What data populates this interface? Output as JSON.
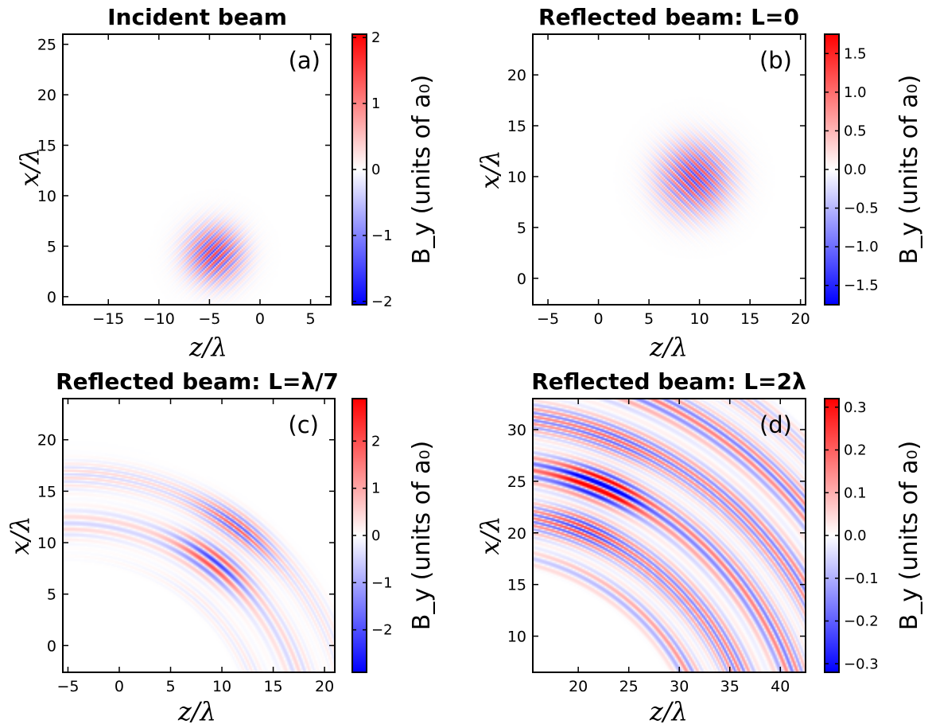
{
  "chart_data": [
    {
      "type": "heatmap",
      "title": "Incident beam",
      "panel_label": "(a)",
      "xlabel": "z/λ",
      "ylabel": "x/λ",
      "colorbar_label": "B_y (units of a₀)",
      "colormap": "bwr",
      "xlim": [
        -19.5,
        7
      ],
      "ylim": [
        -0.8,
        26
      ],
      "xticks": [
        -15,
        -10,
        -5,
        0,
        5
      ],
      "yticks": [
        0,
        5,
        10,
        15,
        20,
        25
      ],
      "clim": [
        -2.05,
        2.05
      ],
      "cbar_ticks": [
        -2,
        -1,
        0,
        1,
        2
      ],
      "cbar_tick_labels": [
        "−2",
        "−1",
        "0",
        "1",
        "2"
      ],
      "field": {
        "kind": "packet",
        "center": [
          -4.5,
          4.2
        ],
        "radius": 2.6,
        "amplitude": 1.9,
        "fringe_spacing": 0.55,
        "fringe_angle_deg": -45
      }
    },
    {
      "type": "heatmap",
      "title": "Reflected beam: L=0",
      "panel_label": "(b)",
      "xlabel": "z/λ",
      "ylabel": "x/λ",
      "colorbar_label": "B_y (units of a₀)",
      "colormap": "bwr",
      "xlim": [
        -6.5,
        20.5
      ],
      "ylim": [
        -2.6,
        24
      ],
      "xticks": [
        -5,
        0,
        5,
        10,
        15,
        20
      ],
      "yticks": [
        0,
        5,
        10,
        15,
        20
      ],
      "clim": [
        -1.75,
        1.75
      ],
      "cbar_ticks": [
        -1.5,
        -1.0,
        -0.5,
        0.0,
        0.5,
        1.0,
        1.5
      ],
      "cbar_tick_labels": [
        "−1.5",
        "−1.0",
        "−0.5",
        "0.0",
        "0.5",
        "1.0",
        "1.5"
      ],
      "field": {
        "kind": "packet",
        "center": [
          9.5,
          9.8
        ],
        "radius": 3.2,
        "amplitude": 1.6,
        "fringe_spacing": 0.55,
        "fringe_angle_deg": 45
      }
    },
    {
      "type": "heatmap",
      "title": "Reflected beam: L=λ/7",
      "panel_label": "(c)",
      "xlabel": "z/λ",
      "ylabel": "x/λ",
      "colorbar_label": "B_y (units of a₀)",
      "colormap": "bwr",
      "xlim": [
        -5.5,
        21
      ],
      "ylim": [
        -2.6,
        24
      ],
      "xticks": [
        -5,
        0,
        5,
        10,
        15,
        20
      ],
      "yticks": [
        0,
        5,
        10,
        15,
        20
      ],
      "clim": [
        -2.9,
        2.9
      ],
      "cbar_ticks": [
        -2,
        -1,
        0,
        1,
        2
      ],
      "cbar_tick_labels": [
        "−2",
        "−1",
        "0",
        "1",
        "2"
      ],
      "field": {
        "kind": "arcs",
        "center": [
          -5,
          -10
        ],
        "r_min": 20,
        "r_max": 27,
        "amplitude": 0.8,
        "peak": [
          10.5,
          9.8
        ],
        "peak_amplitude": 2.4
      }
    },
    {
      "type": "heatmap",
      "title": "Reflected beam: L=2λ",
      "panel_label": "(d)",
      "xlabel": "z/λ",
      "ylabel": "x/λ",
      "colorbar_label": "B_y (units of a₀)",
      "colormap": "bwr",
      "xlim": [
        15.5,
        42.5
      ],
      "ylim": [
        6.5,
        33
      ],
      "xticks": [
        20,
        25,
        30,
        35,
        40
      ],
      "yticks": [
        10,
        15,
        20,
        25,
        30
      ],
      "clim": [
        -0.32,
        0.32
      ],
      "cbar_ticks": [
        -0.3,
        -0.2,
        -0.1,
        0.0,
        0.1,
        0.2,
        0.3
      ],
      "cbar_tick_labels": [
        "−0.3",
        "−0.2",
        "−0.1",
        "0.0",
        "0.1",
        "0.2",
        "0.3"
      ],
      "field": {
        "kind": "arcs",
        "center": [
          10,
          -5
        ],
        "r_min": 24,
        "r_max": 45,
        "amplitude": 0.28,
        "peak": [
          22,
          24
        ],
        "peak_amplitude": 0.3
      }
    }
  ]
}
